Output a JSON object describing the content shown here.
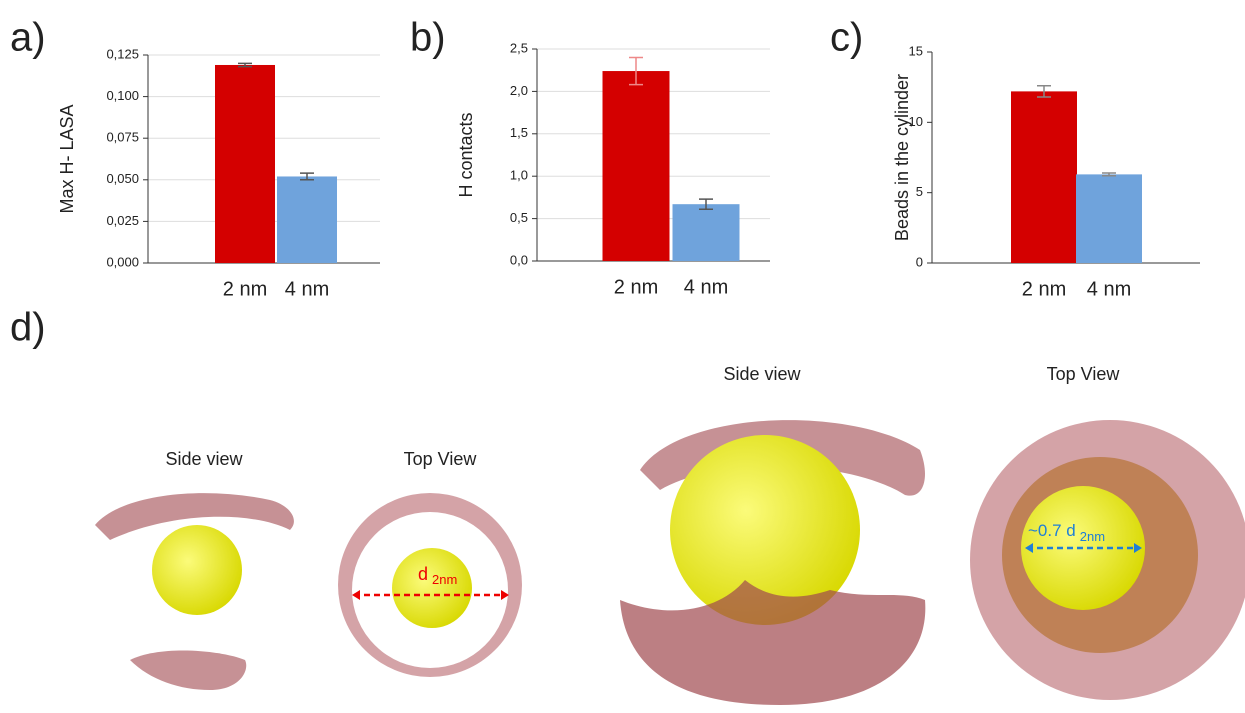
{
  "chart_data": [
    {
      "type": "bar",
      "label": "a)",
      "ylabel": "Max H- LASA",
      "categories": [
        "2 nm",
        "4 nm"
      ],
      "values": [
        0.119,
        0.052
      ],
      "errors": [
        0.001,
        0.002
      ],
      "colors": [
        "#d40000",
        "#6fa3dc"
      ],
      "ylim": [
        0,
        0.125
      ],
      "yticks": [
        {
          "value": 0,
          "label": "0,000"
        },
        {
          "value": 0.025,
          "label": "0,025"
        },
        {
          "value": 0.05,
          "label": "0,050"
        },
        {
          "value": 0.075,
          "label": "0,075"
        },
        {
          "value": 0.1,
          "label": "0,100"
        },
        {
          "value": 0.125,
          "label": "0,125"
        }
      ],
      "grid": true
    },
    {
      "type": "bar",
      "label": "b)",
      "ylabel": "H contacts",
      "categories": [
        "2 nm",
        "4 nm"
      ],
      "values": [
        2.24,
        0.67
      ],
      "errors": [
        0.16,
        0.06
      ],
      "colors": [
        "#d40000",
        "#6fa3dc"
      ],
      "ylim": [
        0,
        2.5
      ],
      "yticks": [
        {
          "value": 0,
          "label": "0,0"
        },
        {
          "value": 0.5,
          "label": "0,5"
        },
        {
          "value": 1,
          "label": "1,0"
        },
        {
          "value": 1.5,
          "label": "1,5"
        },
        {
          "value": 2,
          "label": "2,0"
        },
        {
          "value": 2.5,
          "label": "2,5"
        }
      ],
      "grid": true
    },
    {
      "type": "bar",
      "label": "c)",
      "ylabel": "Beads in the cylinder",
      "categories": [
        "2 nm",
        "4 nm"
      ],
      "values": [
        12.2,
        6.3
      ],
      "errors": [
        0.4,
        0.1
      ],
      "colors": [
        "#d40000",
        "#6fa3dc"
      ],
      "ylim": [
        0,
        15
      ],
      "yticks": [
        0,
        5,
        10,
        15
      ],
      "grid": false
    }
  ],
  "illustration": {
    "label": "d)",
    "panels": [
      "Side view",
      "Top View",
      "Side view",
      "Top View"
    ],
    "annotations": [
      {
        "text": "d",
        "subscript": "2nm"
      },
      {
        "text": "~0.7 d",
        "subscript": "2nm"
      }
    ]
  }
}
